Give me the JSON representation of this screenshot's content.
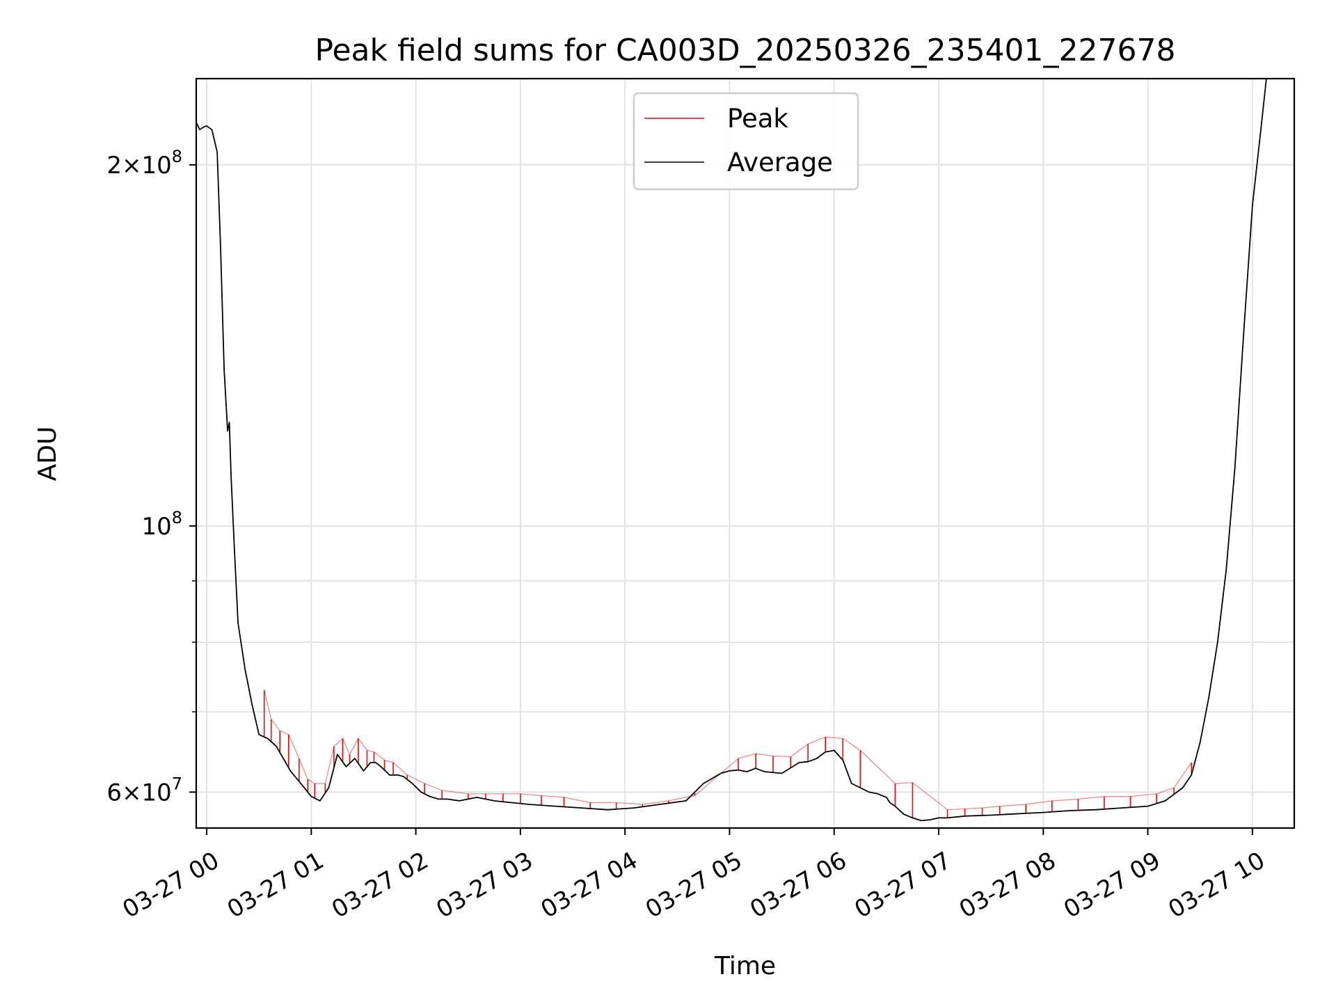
{
  "chart_data": {
    "type": "line",
    "title": "Peak field sums for CA003D_20250326_235401_227678",
    "xlabel": "Time",
    "ylabel": "ADU",
    "yscale": "log",
    "ylim": [
      56000000,
      236000000
    ],
    "xlim": [
      "2025-03-26 23:54",
      "2025-03-27 10:24"
    ],
    "grid": true,
    "legend_position": "top-center",
    "x_ticks": [
      {
        "value": "2025-03-27 00:00",
        "label": "03-27 00"
      },
      {
        "value": "2025-03-27 01:00",
        "label": "03-27 01"
      },
      {
        "value": "2025-03-27 02:00",
        "label": "03-27 02"
      },
      {
        "value": "2025-03-27 03:00",
        "label": "03-27 03"
      },
      {
        "value": "2025-03-27 04:00",
        "label": "03-27 04"
      },
      {
        "value": "2025-03-27 05:00",
        "label": "03-27 05"
      },
      {
        "value": "2025-03-27 06:00",
        "label": "03-27 06"
      },
      {
        "value": "2025-03-27 07:00",
        "label": "03-27 07"
      },
      {
        "value": "2025-03-27 08:00",
        "label": "03-27 08"
      },
      {
        "value": "2025-03-27 09:00",
        "label": "03-27 09"
      },
      {
        "value": "2025-03-27 10:00",
        "label": "03-27 10"
      }
    ],
    "y_ticks": [
      {
        "value": 60000000,
        "base": "6",
        "exponent": "7"
      },
      {
        "value": 100000000,
        "base": "",
        "exponent": "8"
      },
      {
        "value": 200000000,
        "base": "2",
        "exponent": "8"
      }
    ],
    "y_minor_grid": [
      70000000,
      80000000,
      90000000
    ],
    "series": [
      {
        "name": "Average",
        "color": "#000000",
        "x": [
          "2025-03-26 23:54",
          "2025-03-26 23:56",
          "2025-03-26 23:58",
          "2025-03-27 00:00",
          "2025-03-27 00:03",
          "2025-03-27 00:06",
          "2025-03-27 00:08",
          "2025-03-27 00:10",
          "2025-03-27 00:12",
          "2025-03-27 00:13",
          "2025-03-27 00:14",
          "2025-03-27 00:16",
          "2025-03-27 00:18",
          "2025-03-27 00:22",
          "2025-03-27 00:26",
          "2025-03-27 00:30",
          "2025-03-27 00:35",
          "2025-03-27 00:40",
          "2025-03-27 00:44",
          "2025-03-27 00:48",
          "2025-03-27 00:52",
          "2025-03-27 00:56",
          "2025-03-27 01:00",
          "2025-03-27 01:05",
          "2025-03-27 01:10",
          "2025-03-27 01:15",
          "2025-03-27 01:20",
          "2025-03-27 01:25",
          "2025-03-27 01:30",
          "2025-03-27 01:34",
          "2025-03-27 01:37",
          "2025-03-27 01:40",
          "2025-03-27 01:45",
          "2025-03-27 01:50",
          "2025-03-27 01:53",
          "2025-03-27 01:58",
          "2025-03-27 02:03",
          "2025-03-27 02:08",
          "2025-03-27 02:13",
          "2025-03-27 02:18",
          "2025-03-27 02:25",
          "2025-03-27 02:35",
          "2025-03-27 02:45",
          "2025-03-27 02:55",
          "2025-03-27 03:05",
          "2025-03-27 03:20",
          "2025-03-27 03:35",
          "2025-03-27 03:50",
          "2025-03-27 04:05",
          "2025-03-27 04:20",
          "2025-03-27 04:35",
          "2025-03-27 04:45",
          "2025-03-27 04:55",
          "2025-03-27 05:00",
          "2025-03-27 05:05",
          "2025-03-27 05:10",
          "2025-03-27 05:15",
          "2025-03-27 05:20",
          "2025-03-27 05:30",
          "2025-03-27 05:40",
          "2025-03-27 05:45",
          "2025-03-27 05:50",
          "2025-03-27 05:55",
          "2025-03-27 06:00",
          "2025-03-27 06:05",
          "2025-03-27 06:10",
          "2025-03-27 06:15",
          "2025-03-27 06:20",
          "2025-03-27 06:25",
          "2025-03-27 06:30",
          "2025-03-27 06:32",
          "2025-03-27 06:35",
          "2025-03-27 06:40",
          "2025-03-27 06:45",
          "2025-03-27 06:50",
          "2025-03-27 06:55",
          "2025-03-27 07:00",
          "2025-03-27 07:05",
          "2025-03-27 07:15",
          "2025-03-27 07:30",
          "2025-03-27 07:40",
          "2025-03-27 07:50",
          "2025-03-27 08:00",
          "2025-03-27 08:15",
          "2025-03-27 08:30",
          "2025-03-27 08:45",
          "2025-03-27 09:00",
          "2025-03-27 09:10",
          "2025-03-27 09:20",
          "2025-03-27 09:25",
          "2025-03-27 09:30",
          "2025-03-27 09:35",
          "2025-03-27 09:40",
          "2025-03-27 09:45",
          "2025-03-27 09:50",
          "2025-03-27 09:55",
          "2025-03-27 10:00",
          "2025-03-27 10:05",
          "2025-03-27 10:08",
          "2025-03-27 10:12"
        ],
        "values": [
          217000000,
          214000000,
          215000000,
          215500000,
          214000000,
          205000000,
          170000000,
          135000000,
          120000000,
          122000000,
          110000000,
          95000000,
          83000000,
          76000000,
          71000000,
          67000000,
          66500000,
          65500000,
          64000000,
          62500000,
          61500000,
          60500000,
          59500000,
          59000000,
          60500000,
          64500000,
          63000000,
          64000000,
          62500000,
          63500000,
          63500000,
          63000000,
          62000000,
          62000000,
          61800000,
          61000000,
          60000000,
          59500000,
          59200000,
          59200000,
          59000000,
          59400000,
          59000000,
          58800000,
          58600000,
          58400000,
          58200000,
          58000000,
          58200000,
          58600000,
          59000000,
          61000000,
          62200000,
          62500000,
          62600000,
          62400000,
          62800000,
          62400000,
          62200000,
          63500000,
          63600000,
          64000000,
          64800000,
          65000000,
          63800000,
          61000000,
          60500000,
          60000000,
          59800000,
          59400000,
          58800000,
          58400000,
          57500000,
          57100000,
          56800000,
          56900000,
          57100000,
          57100000,
          57300000,
          57400000,
          57500000,
          57600000,
          57700000,
          57900000,
          58000000,
          58200000,
          58400000,
          59000000,
          60500000,
          62000000,
          66000000,
          72000000,
          80000000,
          92000000,
          112000000,
          145000000,
          185000000,
          215000000,
          236000000,
          236000000
        ]
      },
      {
        "name": "Peak",
        "color": "#ff0000",
        "x": [
          "2025-03-27 00:33",
          "2025-03-27 00:37",
          "2025-03-27 00:42",
          "2025-03-27 00:47",
          "2025-03-27 00:53",
          "2025-03-27 00:58",
          "2025-03-27 01:02",
          "2025-03-27 01:08",
          "2025-03-27 01:13",
          "2025-03-27 01:18",
          "2025-03-27 01:22",
          "2025-03-27 01:27",
          "2025-03-27 01:32",
          "2025-03-27 01:36",
          "2025-03-27 01:42",
          "2025-03-27 01:47",
          "2025-03-27 01:55",
          "2025-03-27 02:05",
          "2025-03-27 02:15",
          "2025-03-27 02:30",
          "2025-03-27 02:40",
          "2025-03-27 02:50",
          "2025-03-27 03:00",
          "2025-03-27 03:12",
          "2025-03-27 03:25",
          "2025-03-27 03:40",
          "2025-03-27 03:55",
          "2025-03-27 04:10",
          "2025-03-27 04:25",
          "2025-03-27 04:40",
          "2025-03-27 05:05",
          "2025-03-27 05:15",
          "2025-03-27 05:25",
          "2025-03-27 05:35",
          "2025-03-27 05:45",
          "2025-03-27 05:55",
          "2025-03-27 06:05",
          "2025-03-27 06:15",
          "2025-03-27 06:35",
          "2025-03-27 06:45",
          "2025-03-27 07:05",
          "2025-03-27 07:15",
          "2025-03-27 07:25",
          "2025-03-27 07:35",
          "2025-03-27 07:50",
          "2025-03-27 08:05",
          "2025-03-27 08:20",
          "2025-03-27 08:35",
          "2025-03-27 08:50",
          "2025-03-27 09:05",
          "2025-03-27 09:15",
          "2025-03-27 09:25"
        ],
        "values": [
          73000000,
          69000000,
          67500000,
          67000000,
          64000000,
          61500000,
          61000000,
          61000000,
          65500000,
          66500000,
          64500000,
          66500000,
          65000000,
          64800000,
          63800000,
          63500000,
          62000000,
          61000000,
          60200000,
          59800000,
          59800000,
          59800000,
          59800000,
          59600000,
          59400000,
          58800000,
          58800000,
          58600000,
          59000000,
          59600000,
          64000000,
          64600000,
          64300000,
          64200000,
          65800000,
          66700000,
          66500000,
          65000000,
          61000000,
          61100000,
          58000000,
          58100000,
          58200000,
          58400000,
          58600000,
          59000000,
          59200000,
          59500000,
          59500000,
          59800000,
          60500000,
          63500000
        ]
      }
    ]
  }
}
